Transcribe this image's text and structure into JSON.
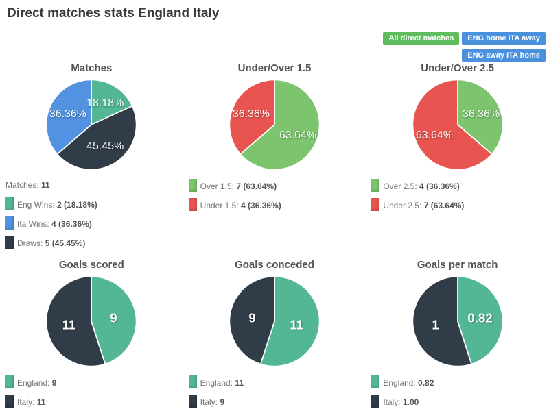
{
  "header": {
    "title": "Direct matches stats England Italy"
  },
  "filters": [
    {
      "label": "All direct matches",
      "color": "#5fbd5f"
    },
    {
      "label": "ENG home ITA away",
      "color": "#4a90dd"
    },
    {
      "label": "ENG away ITA home",
      "color": "#4a90dd"
    }
  ],
  "palette": {
    "teal": "#53b795",
    "blue": "#5292e0",
    "dark": "#303c47",
    "green": "#7cc46e",
    "red": "#e85450"
  },
  "layout": {
    "rows": [
      [
        0,
        1,
        2
      ],
      [
        3,
        4,
        5
      ]
    ]
  },
  "chart_data": [
    {
      "type": "pie",
      "title": "Matches",
      "header": {
        "label": "Matches:",
        "value": "11"
      },
      "slices": [
        {
          "name": "Eng Wins",
          "value": 18.18,
          "label": "18.18%",
          "color": "teal"
        },
        {
          "name": "Draws",
          "value": 45.45,
          "label": "45.45%",
          "color": "dark"
        },
        {
          "name": "Ita Wins",
          "value": 36.36,
          "label": "36.36%",
          "color": "blue"
        }
      ],
      "legend": [
        {
          "color": "teal",
          "label": "Eng Wins:",
          "value": "2 (18.18%)"
        },
        {
          "color": "blue",
          "label": "Ita Wins:",
          "value": "4 (36.36%)"
        },
        {
          "color": "dark",
          "label": "Draws:",
          "value": "5 (45.45%)"
        }
      ]
    },
    {
      "type": "pie",
      "title": "Under/Over 1.5",
      "slices": [
        {
          "name": "Over 1.5",
          "value": 63.64,
          "label": "63.64%",
          "color": "green"
        },
        {
          "name": "Under 1.5",
          "value": 36.36,
          "label": "36.36%",
          "color": "red"
        }
      ],
      "legend": [
        {
          "color": "green",
          "label": "Over 1.5:",
          "value": "7 (63.64%)"
        },
        {
          "color": "red",
          "label": "Under 1.5:",
          "value": "4 (36.36%)"
        }
      ]
    },
    {
      "type": "pie",
      "title": "Under/Over 2.5",
      "slices": [
        {
          "name": "Over 2.5",
          "value": 36.36,
          "label": "36.36%",
          "color": "green"
        },
        {
          "name": "Under 2.5",
          "value": 63.64,
          "label": "63.64%",
          "color": "red"
        }
      ],
      "legend": [
        {
          "color": "green",
          "label": "Over 2.5:",
          "value": "4 (36.36%)"
        },
        {
          "color": "red",
          "label": "Under 2.5:",
          "value": "7 (63.64%)"
        }
      ]
    },
    {
      "type": "pie",
      "title": "Goals scored",
      "slices": [
        {
          "name": "England",
          "value": 9,
          "label": "9",
          "color": "teal"
        },
        {
          "name": "Italy",
          "value": 11,
          "label": "11",
          "color": "dark"
        }
      ],
      "legend": [
        {
          "color": "teal",
          "label": "England:",
          "value": "9"
        },
        {
          "color": "dark",
          "label": "Italy:",
          "value": "11"
        }
      ]
    },
    {
      "type": "pie",
      "title": "Goals conceded",
      "slices": [
        {
          "name": "England",
          "value": 11,
          "label": "11",
          "color": "teal"
        },
        {
          "name": "Italy",
          "value": 9,
          "label": "9",
          "color": "dark"
        }
      ],
      "legend": [
        {
          "color": "teal",
          "label": "England:",
          "value": "11"
        },
        {
          "color": "dark",
          "label": "Italy:",
          "value": "9"
        }
      ]
    },
    {
      "type": "pie",
      "title": "Goals per match",
      "slices": [
        {
          "name": "England",
          "value": 0.82,
          "label": "0.82",
          "color": "teal"
        },
        {
          "name": "Italy",
          "value": 1.0,
          "label": "1",
          "color": "dark"
        }
      ],
      "legend": [
        {
          "color": "teal",
          "label": "England:",
          "value": "0.82"
        },
        {
          "color": "dark",
          "label": "Italy:",
          "value": "1.00"
        }
      ]
    }
  ]
}
